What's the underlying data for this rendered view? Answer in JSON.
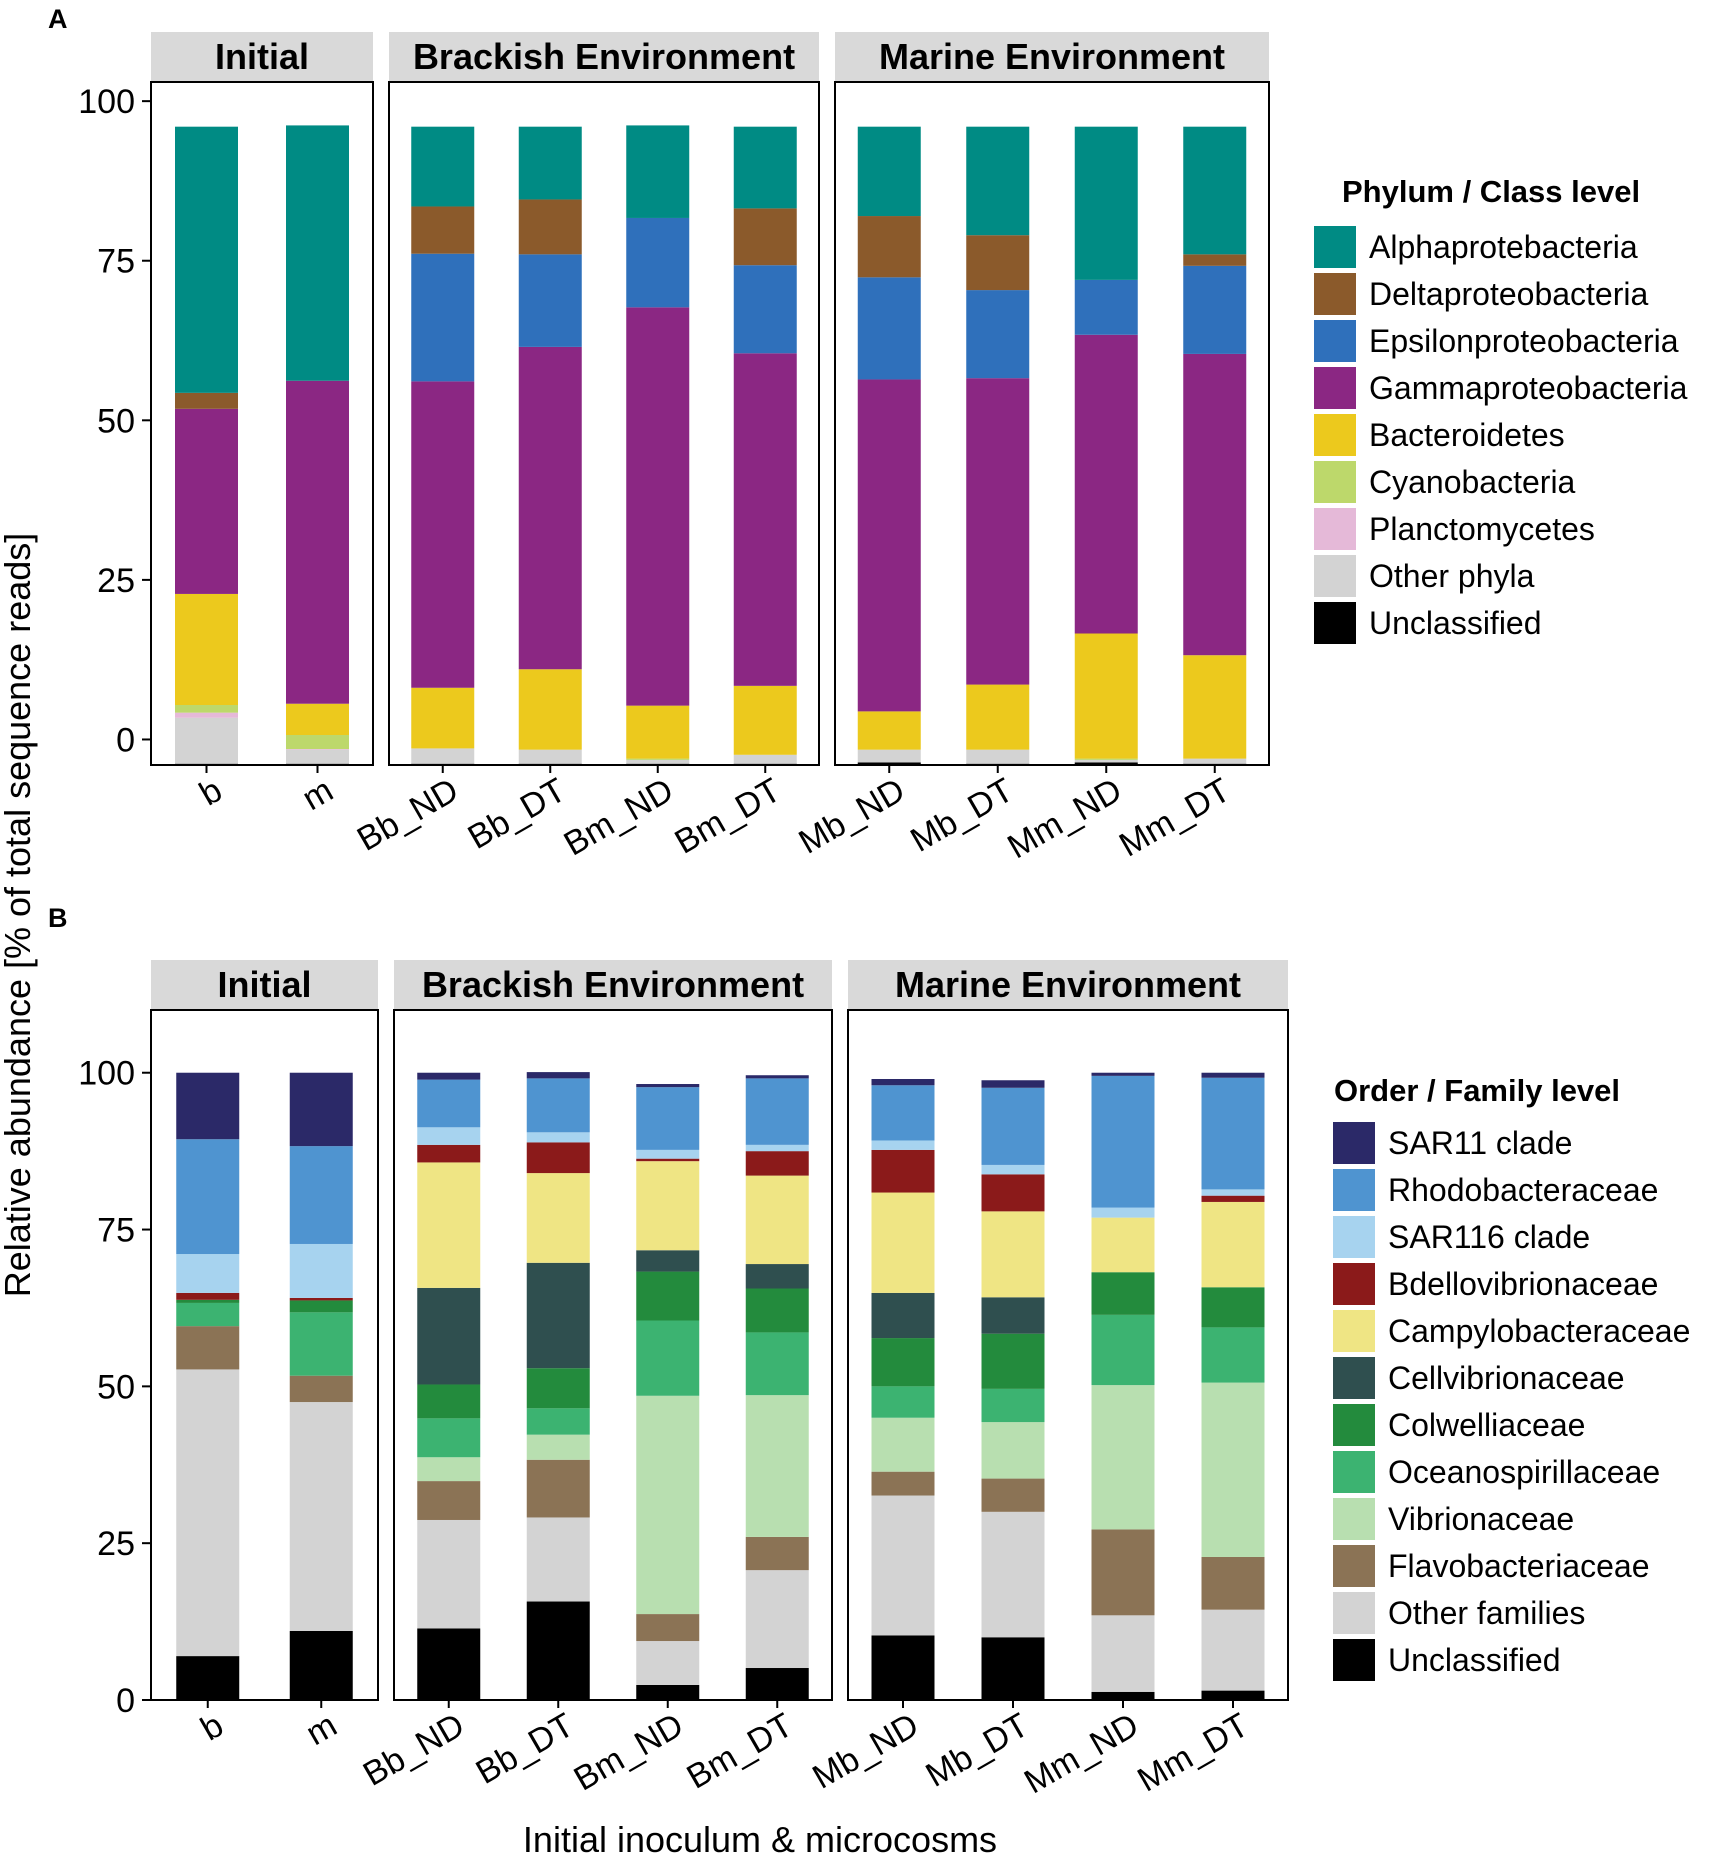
{
  "ylabel": "Relative abundance [% of total sequence reads]",
  "xlabel": "Initial inoculum & microcosms",
  "chart_data": [
    {
      "panel": "A",
      "type": "bar",
      "stacked": true,
      "facets": [
        "Initial",
        "Brackish Environment",
        "Marine Environment"
      ],
      "facet_categories": [
        [
          "b",
          "m"
        ],
        [
          "Bb_ND",
          "Bb_DT",
          "Bm_ND",
          "Bm_DT"
        ],
        [
          "Mb_ND",
          "Mb_DT",
          "Mm_ND",
          "Mm_DT"
        ]
      ],
      "categories": [
        "b",
        "m",
        "Bb_ND",
        "Bb_DT",
        "Bm_ND",
        "Bm_DT",
        "Mb_ND",
        "Mb_DT",
        "Mm_ND",
        "Mm_DT"
      ],
      "y_ticks": [
        "0",
        "25",
        "50",
        "75",
        "100"
      ],
      "ylim": [
        -4,
        103
      ],
      "legend_title": "Phylum / Class level",
      "series": [
        {
          "name": "Unclassified",
          "color": "#000000",
          "values": [
            0.2,
            0.2,
            0.2,
            0.2,
            0.2,
            0.2,
            0.4,
            0.2,
            0.4,
            0.2
          ]
        },
        {
          "name": "Other phyla",
          "color": "#d3d3d3",
          "values": [
            7.2,
            2.2,
            2.4,
            2.2,
            0.6,
            1.4,
            2.0,
            2.2,
            0.4,
            0.8
          ]
        },
        {
          "name": "Planctomycetes",
          "color": "#e5b9d8",
          "values": [
            0.8,
            0.1,
            0.0,
            0.0,
            0.0,
            0.0,
            0.0,
            0.0,
            0.0,
            0.0
          ]
        },
        {
          "name": "Cyanobacteria",
          "color": "#bdd86b",
          "values": [
            1.2,
            2.2,
            0.0,
            0.0,
            0.2,
            0.0,
            0.0,
            0.0,
            0.2,
            0.0
          ]
        },
        {
          "name": "Bacteroidetes",
          "color": "#ecc91d",
          "values": [
            17.4,
            4.9,
            9.5,
            12.6,
            8.3,
            10.8,
            6.0,
            10.2,
            19.6,
            16.2
          ]
        },
        {
          "name": "Gammaproteobacteria",
          "color": "#8b2783",
          "values": [
            29.0,
            50.6,
            48.0,
            50.5,
            62.4,
            52.1,
            52.0,
            48.0,
            46.8,
            47.2
          ]
        },
        {
          "name": "Epsilonproteobacteria",
          "color": "#2f70bb",
          "values": [
            0.0,
            0.0,
            20.0,
            14.5,
            14.0,
            13.8,
            16.0,
            13.8,
            8.6,
            13.8
          ]
        },
        {
          "name": "Deltaproteobacteria",
          "color": "#8b5a2b",
          "values": [
            2.5,
            0.0,
            7.4,
            8.6,
            0.0,
            8.9,
            9.6,
            8.6,
            0.0,
            1.8
          ]
        },
        {
          "name": "Alphaprotebacteria",
          "color": "#008b84",
          "values": [
            41.7,
            40.0,
            12.5,
            11.4,
            14.5,
            12.8,
            14.0,
            17.0,
            24.0,
            20.0
          ]
        }
      ]
    },
    {
      "panel": "B",
      "type": "bar",
      "stacked": true,
      "facets": [
        "Initial",
        "Brackish Environment",
        "Marine Environment"
      ],
      "facet_categories": [
        [
          "b",
          "m"
        ],
        [
          "Bb_ND",
          "Bb_DT",
          "Bm_ND",
          "Bm_DT"
        ],
        [
          "Mb_ND",
          "Mb_DT",
          "Mm_ND",
          "Mm_DT"
        ]
      ],
      "categories": [
        "b",
        "m",
        "Bb_ND",
        "Bb_DT",
        "Bm_ND",
        "Bm_DT",
        "Mb_ND",
        "Mb_DT",
        "Mm_ND",
        "Mm_DT"
      ],
      "y_ticks": [
        "0",
        "25",
        "50",
        "75",
        "100"
      ],
      "ylim": [
        0,
        110
      ],
      "legend_title": "Order / Family level",
      "series": [
        {
          "name": "Unclassified",
          "color": "#000000",
          "values": [
            7.0,
            11.0,
            11.4,
            15.7,
            2.4,
            5.1,
            10.3,
            10.0,
            1.3,
            1.5
          ]
        },
        {
          "name": "Other families",
          "color": "#d3d3d3",
          "values": [
            45.7,
            36.5,
            17.3,
            13.4,
            7.0,
            15.6,
            22.3,
            20.0,
            12.2,
            12.9
          ]
        },
        {
          "name": "Flavobacteriaceae",
          "color": "#8b7355",
          "values": [
            6.9,
            4.2,
            6.2,
            9.2,
            4.3,
            5.3,
            3.8,
            5.3,
            13.7,
            8.4
          ]
        },
        {
          "name": "Vibrionaceae",
          "color": "#b8dfb0",
          "values": [
            0.0,
            0.0,
            3.8,
            4.0,
            34.8,
            22.6,
            8.6,
            9.0,
            23.0,
            27.8
          ]
        },
        {
          "name": "Oceanospirillaceae",
          "color": "#3cb371",
          "values": [
            3.7,
            10.1,
            6.2,
            4.2,
            12.0,
            10.0,
            5.0,
            5.3,
            11.2,
            8.8
          ]
        },
        {
          "name": "Colwelliaceae",
          "color": "#238b3d",
          "values": [
            0.5,
            1.9,
            5.4,
            6.4,
            7.8,
            7.0,
            7.7,
            8.8,
            6.8,
            6.4
          ]
        },
        {
          "name": "Cellvibrionaceae",
          "color": "#2f4f4f",
          "values": [
            0.0,
            0.0,
            15.4,
            16.8,
            3.4,
            3.9,
            7.2,
            5.8,
            0.0,
            0.0
          ]
        },
        {
          "name": "Campylobacteraceae",
          "color": "#efe584",
          "values": [
            0.0,
            0.0,
            20.0,
            14.3,
            14.2,
            14.1,
            16.0,
            13.7,
            8.7,
            13.6
          ]
        },
        {
          "name": "Bdellovibrionaceae",
          "color": "#8b1a1a",
          "values": [
            1.1,
            0.4,
            2.8,
            4.9,
            0.4,
            3.9,
            6.8,
            5.9,
            0.0,
            1.0
          ]
        },
        {
          "name": "SAR116 clade",
          "color": "#a7d3ef",
          "values": [
            6.2,
            8.6,
            2.8,
            1.6,
            1.4,
            1.0,
            1.5,
            1.5,
            1.6,
            1.0
          ]
        },
        {
          "name": "Rhodobacteraceae",
          "color": "#4f94d0",
          "values": [
            18.3,
            15.6,
            7.6,
            8.6,
            10.0,
            10.6,
            8.8,
            12.3,
            21.0,
            17.8
          ]
        },
        {
          "name": "SAR11 clade",
          "color": "#2b2968",
          "values": [
            10.6,
            11.7,
            1.1,
            1.0,
            0.5,
            0.5,
            1.0,
            1.2,
            0.5,
            0.8
          ]
        }
      ]
    }
  ]
}
